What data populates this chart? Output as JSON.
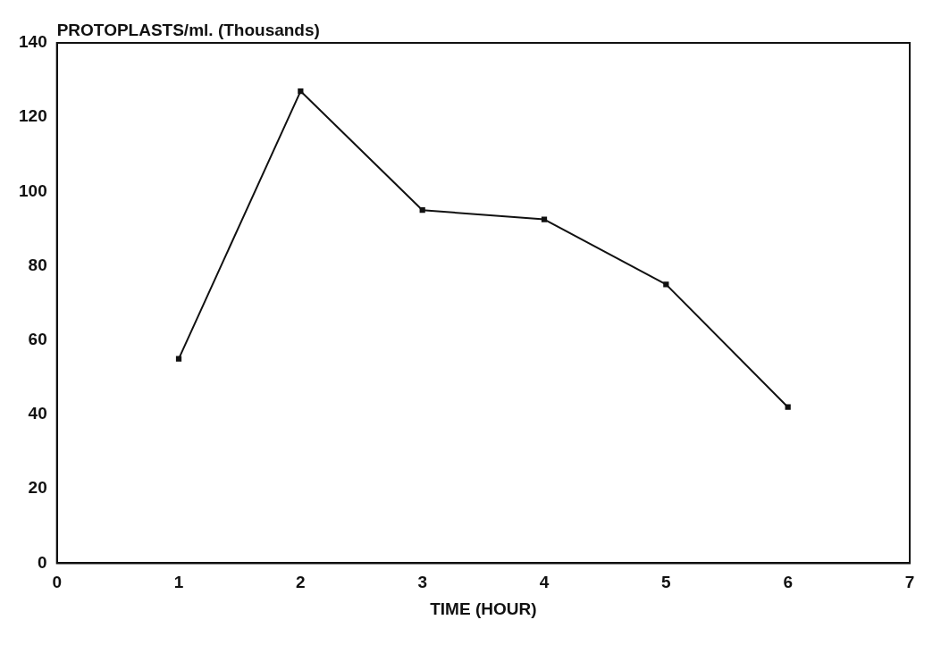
{
  "chart_data": {
    "type": "line",
    "ylabel": "PROTOPLASTS/ml. (Thousands)",
    "xlabel": "TIME (HOUR)",
    "x": [
      1,
      2,
      3,
      4,
      5,
      6
    ],
    "series": [
      {
        "color": "#111111",
        "values": [
          55,
          127,
          95,
          92.5,
          75,
          42
        ]
      }
    ],
    "xlim": [
      0,
      7
    ],
    "xticks": [
      0,
      1,
      2,
      3,
      4,
      5,
      6,
      7
    ],
    "ylim": [
      0,
      140
    ],
    "yticks": [
      0,
      20,
      40,
      60,
      80,
      100,
      120,
      140
    ],
    "marker": "square",
    "line_style": "solid",
    "grid": false,
    "legend": false
  }
}
